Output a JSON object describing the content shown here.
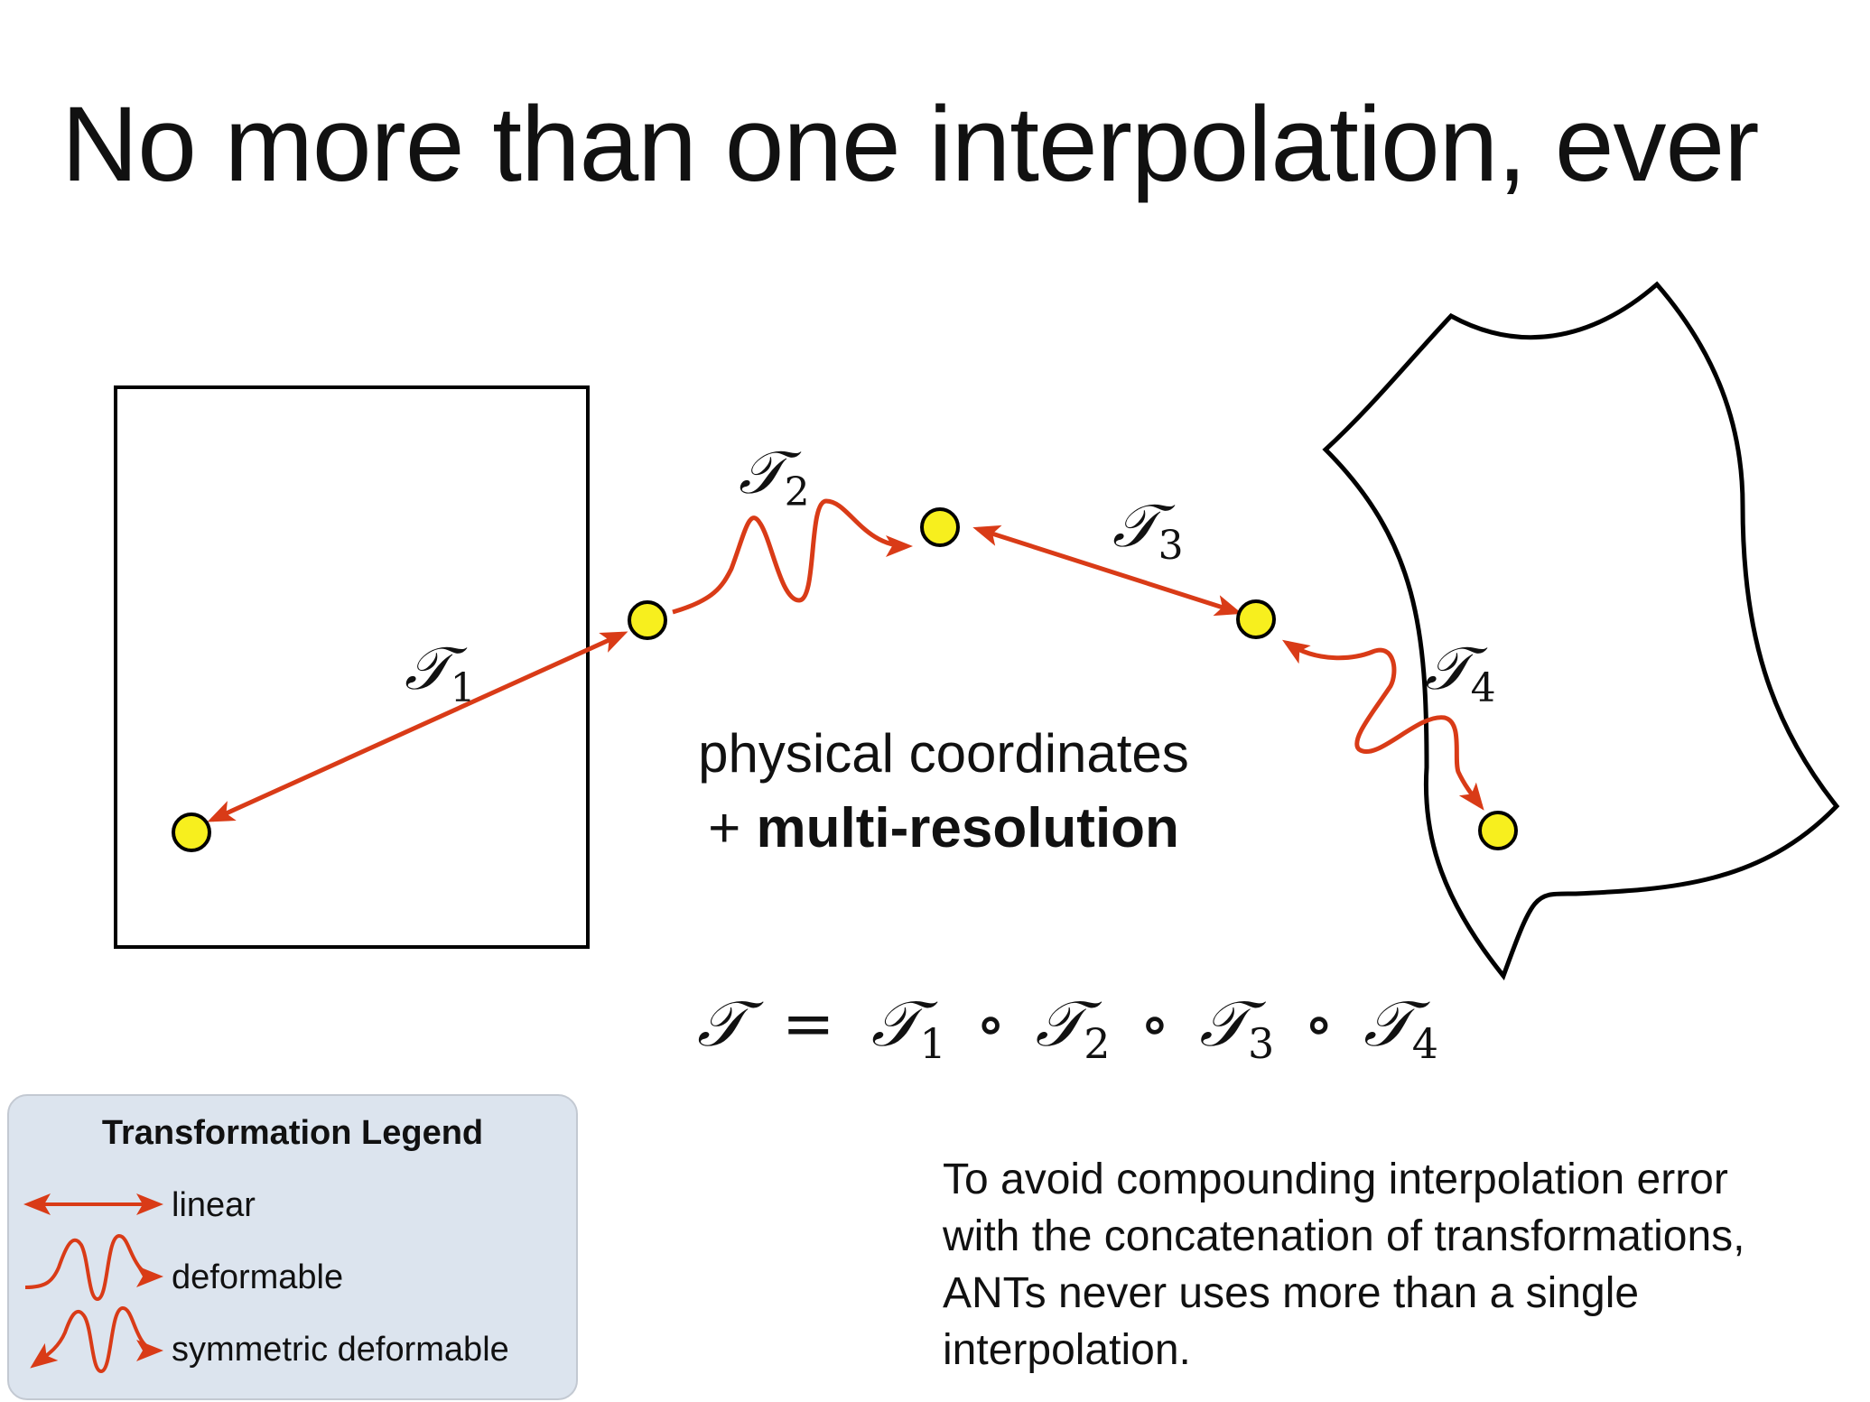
{
  "title": "No more than one interpolation, ever",
  "labels": {
    "t1": "𝒯",
    "t1_sub": "1",
    "t2": "𝒯",
    "t2_sub": "2",
    "t3": "𝒯",
    "t3_sub": "3",
    "t4": "𝒯",
    "t4_sub": "4"
  },
  "center": {
    "line1": "physical coordinates",
    "line2_prefix": "+ ",
    "line2_bold": "multi-resolution"
  },
  "equation": {
    "lhs": "𝒯",
    "eq": "=",
    "t": "𝒯",
    "s1": "1",
    "s2": "2",
    "s3": "3",
    "s4": "4",
    "op": "∘"
  },
  "legend": {
    "title": "Transformation Legend",
    "items": [
      {
        "label": "linear"
      },
      {
        "label": "deformable"
      },
      {
        "label": "symmetric deformable"
      }
    ]
  },
  "note": [
    "To avoid compounding interpolation error",
    "with the concatenation of transformations,",
    "ANTs never uses more than a single",
    "interpolation."
  ],
  "colors": {
    "arrow": "#d93b17",
    "point_fill": "#f7ef1e",
    "outline": "#000000",
    "legend_bg": "#dce4ee"
  }
}
